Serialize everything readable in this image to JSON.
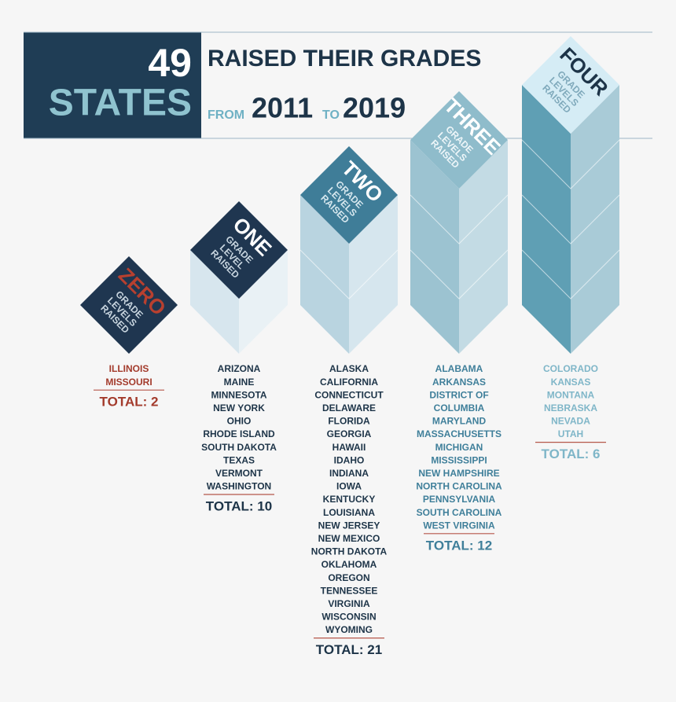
{
  "header": {
    "number": "49",
    "states": "STATES",
    "title": "RAISED THEIR GRADES",
    "from": "FROM",
    "start": "2011",
    "to": "TO",
    "end": "2019"
  },
  "columns": [
    {
      "word": "ZERO",
      "sub": [
        "GRADE",
        "LEVELS",
        "RAISED"
      ],
      "states": [
        "ILLINOIS",
        "MISSOURI"
      ],
      "total": "TOTAL: 2"
    },
    {
      "word": "ONE",
      "sub": [
        "GRADE",
        "LEVEL",
        "RAISED"
      ],
      "states": [
        "ARIZONA",
        "MAINE",
        "MINNESOTA",
        "NEW YORK",
        "OHIO",
        "RHODE ISLAND",
        "SOUTH DAKOTA",
        "TEXAS",
        "VERMONT",
        "WASHINGTON"
      ],
      "total": "TOTAL: 10"
    },
    {
      "word": "TWO",
      "sub": [
        "GRADE",
        "LEVELS",
        "RAISED"
      ],
      "states": [
        "ALASKA",
        "CALIFORNIA",
        "CONNECTICUT",
        "DELAWARE",
        "FLORIDA",
        "GEORGIA",
        "HAWAII",
        "IDAHO",
        "INDIANA",
        "IOWA",
        "KENTUCKY",
        "LOUISIANA",
        "NEW JERSEY",
        "NEW MEXICO",
        "NORTH DAKOTA",
        "OKLAHOMA",
        "OREGON",
        "TENNESSEE",
        "VIRGINIA",
        "WISCONSIN",
        "WYOMING"
      ],
      "total": "TOTAL: 21"
    },
    {
      "word": "THREE",
      "sub": [
        "GRADE",
        "LEVELS",
        "RAISED"
      ],
      "states": [
        "ALABAMA",
        "ARKANSAS",
        "DISTRICT OF",
        "COLUMBIA",
        "MARYLAND",
        "MASSACHUSETTS",
        "MICHIGAN",
        "MISSISSIPPI",
        "NEW HAMPSHIRE",
        "NORTH CAROLINA",
        "PENNSYLVANIA",
        "SOUTH CAROLINA",
        "WEST VIRGINIA"
      ],
      "total": "TOTAL: 12"
    },
    {
      "word": "FOUR",
      "sub": [
        "GRADE",
        "LEVELS",
        "RAISED"
      ],
      "states": [
        "COLORADO",
        "KANSAS",
        "MONTANA",
        "NEBRASKA",
        "NEVADA",
        "UTAH"
      ],
      "total": "TOTAL: 6"
    }
  ]
}
